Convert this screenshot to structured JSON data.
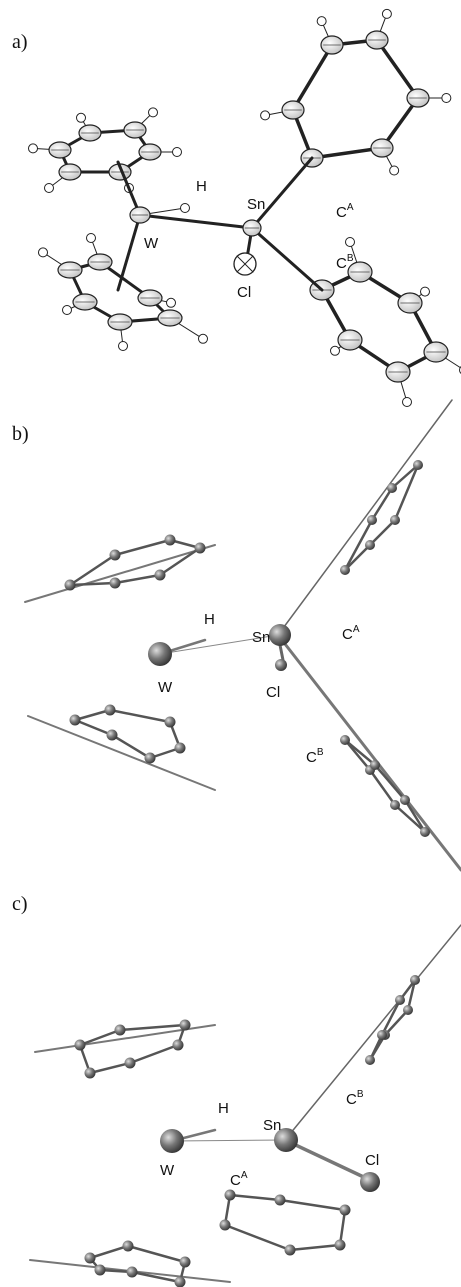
{
  "panels": [
    {
      "label": "a)",
      "atoms": [
        {
          "text": "H"
        },
        {
          "text": "Sn"
        },
        {
          "text": "W"
        },
        {
          "text": "Cl"
        },
        {
          "text": "C",
          "sup": "A"
        },
        {
          "text": "C",
          "sup": "B"
        }
      ]
    },
    {
      "label": "b)",
      "atoms": [
        {
          "text": "H"
        },
        {
          "text": "Sn"
        },
        {
          "text": "W"
        },
        {
          "text": "Cl"
        },
        {
          "text": "C",
          "sup": "A"
        },
        {
          "text": "C",
          "sup": "B"
        }
      ]
    },
    {
      "label": "c)",
      "atoms": [
        {
          "text": "H"
        },
        {
          "text": "Sn"
        },
        {
          "text": "W"
        },
        {
          "text": "C",
          "sup": "A"
        },
        {
          "text": "Cl"
        },
        {
          "text": "C",
          "sup": "B"
        }
      ]
    }
  ]
}
